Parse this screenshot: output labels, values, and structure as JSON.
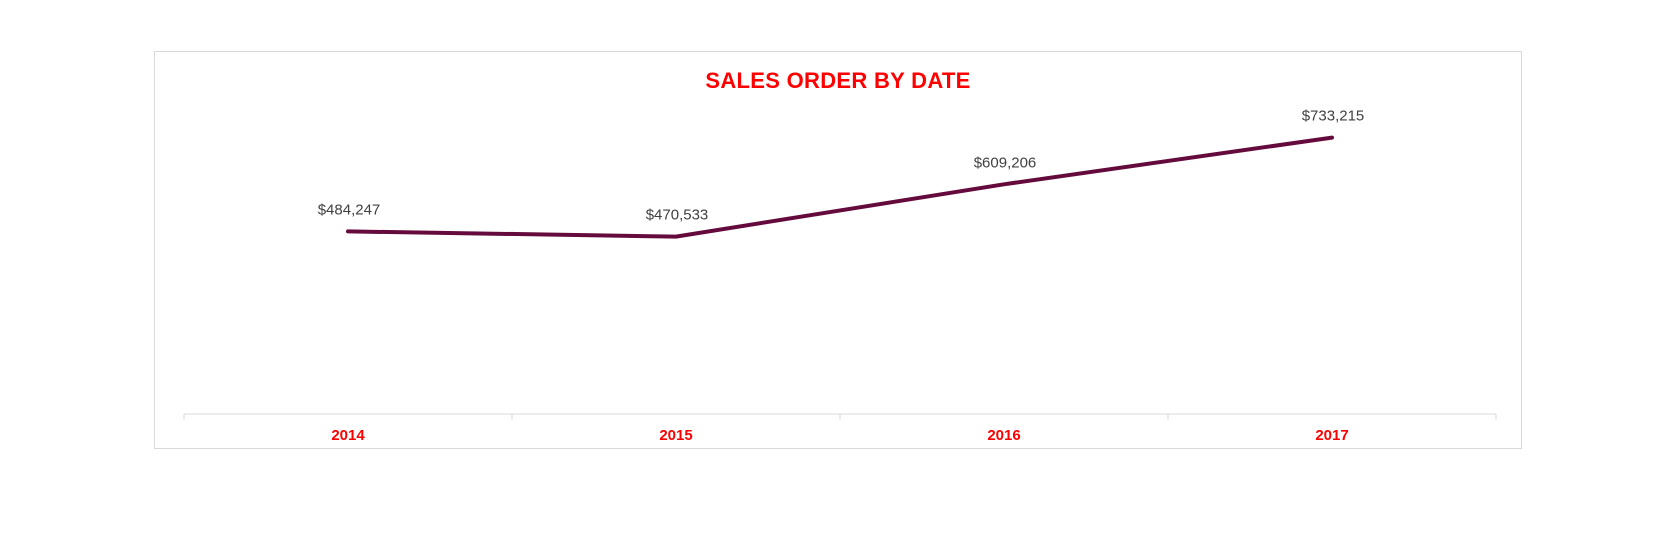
{
  "chart_data": {
    "type": "line",
    "title": "SALES ORDER BY DATE",
    "categories": [
      "2014",
      "2015",
      "2016",
      "2017"
    ],
    "series": [
      {
        "values": [
          484247,
          470533,
          609206,
          733215
        ],
        "labels": [
          "$484,247",
          "$470,533",
          "$609,206",
          "$733,215"
        ]
      }
    ],
    "xlabel": "",
    "ylabel": "",
    "ylim": [
      0,
      1000000
    ],
    "grid": false,
    "legend": "none"
  },
  "colors": {
    "title": "#ff0000",
    "tick_labels": "#ff0000",
    "line": "#640a3c",
    "data_labels": "#404040",
    "axis": "#d9d9d9",
    "border": "#d9d9d9"
  }
}
